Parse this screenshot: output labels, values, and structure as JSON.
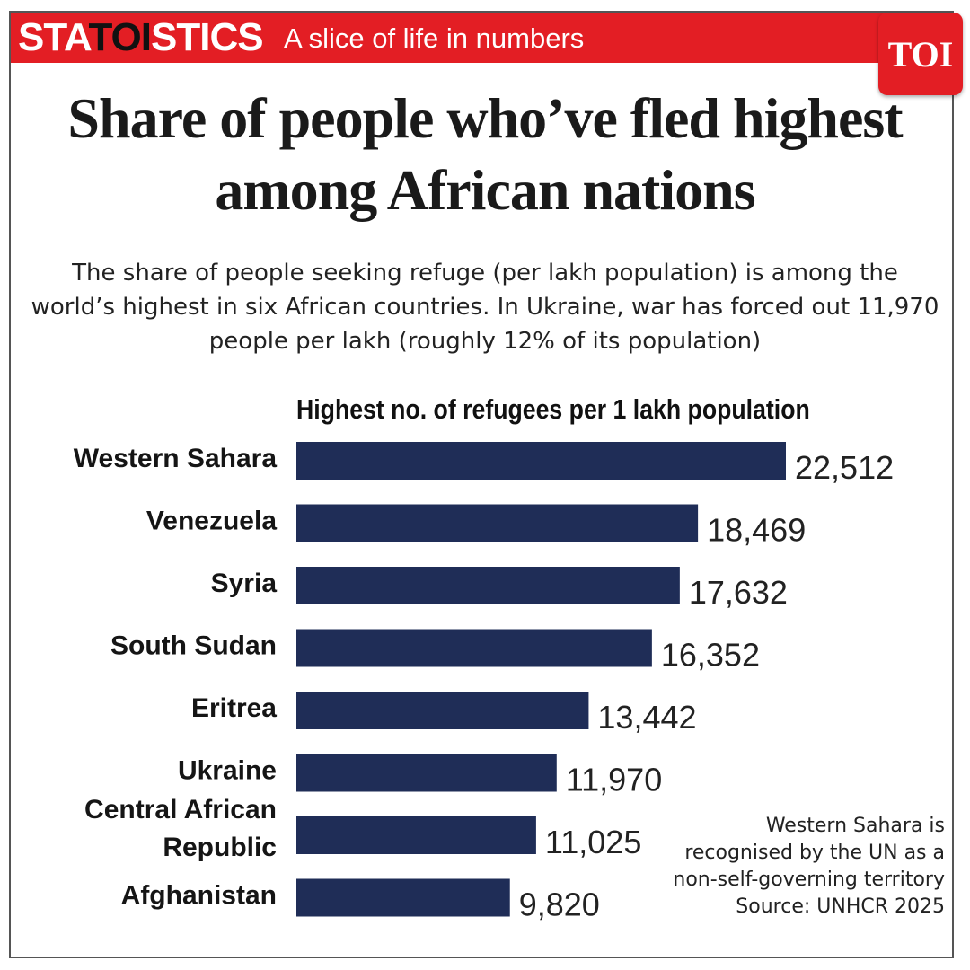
{
  "banner": {
    "brand_left": "STA",
    "brand_mid": "TOI",
    "brand_right": "STICS",
    "tagline": "A slice of life in numbers",
    "logo": "TOI"
  },
  "headline": "Share of people who’ve fled highest among African nations",
  "dek": "The share of people seeking refuge (per lakh population) is among the world’s highest in six African countries. In Ukraine, war has forced out 11,970 people per lakh (roughly 12% of its population)",
  "footnote": {
    "line1": "Western Sahara is",
    "line2": "recognised by the UN as a",
    "line3": "non-self-governing territory",
    "source": "Source: UNHCR 2025"
  },
  "colors": {
    "banner": "#e31e24",
    "bar": "#1f2d57"
  },
  "chart_data": {
    "type": "bar",
    "orientation": "horizontal",
    "title": "Highest no. of refugees per 1 lakh population",
    "categories": [
      "Western Sahara",
      "Venezuela",
      "Syria",
      "South Sudan",
      "Eritrea",
      "Ukraine",
      "Central African Republic",
      "Afghanistan"
    ],
    "values": [
      22512,
      18469,
      17632,
      16352,
      13442,
      11970,
      11025,
      9820
    ],
    "value_labels": [
      "22,512",
      "18,469",
      "17,632",
      "16,352",
      "13,442",
      "11,970",
      "11,025",
      "9,820"
    ],
    "xlim": [
      0,
      22512
    ],
    "grid": false
  }
}
